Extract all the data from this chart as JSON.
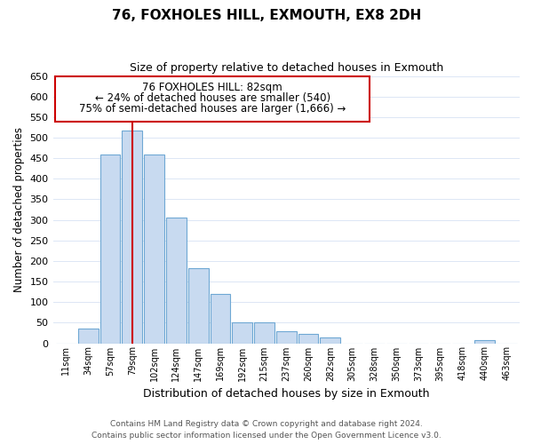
{
  "title": "76, FOXHOLES HILL, EXMOUTH, EX8 2DH",
  "subtitle": "Size of property relative to detached houses in Exmouth",
  "xlabel": "Distribution of detached houses by size in Exmouth",
  "ylabel": "Number of detached properties",
  "categories": [
    "11sqm",
    "34sqm",
    "57sqm",
    "79sqm",
    "102sqm",
    "124sqm",
    "147sqm",
    "169sqm",
    "192sqm",
    "215sqm",
    "237sqm",
    "260sqm",
    "282sqm",
    "305sqm",
    "328sqm",
    "350sqm",
    "373sqm",
    "395sqm",
    "418sqm",
    "440sqm",
    "463sqm"
  ],
  "values": [
    0,
    35,
    458,
    518,
    458,
    305,
    183,
    120,
    50,
    50,
    30,
    23,
    13,
    0,
    0,
    0,
    0,
    0,
    0,
    8,
    0
  ],
  "bar_color": "#c8daf0",
  "bar_edge_color": "#6fa8d4",
  "property_bar_index": 3,
  "property_line_color": "#cc0000",
  "ylim": [
    0,
    650
  ],
  "yticks": [
    0,
    50,
    100,
    150,
    200,
    250,
    300,
    350,
    400,
    450,
    500,
    550,
    600,
    650
  ],
  "annotation_title": "76 FOXHOLES HILL: 82sqm",
  "annotation_line1": "← 24% of detached houses are smaller (540)",
  "annotation_line2": "75% of semi-detached houses are larger (1,666) →",
  "annotation_box_color": "#ffffff",
  "annotation_box_edge": "#cc0000",
  "footer_line1": "Contains HM Land Registry data © Crown copyright and database right 2024.",
  "footer_line2": "Contains public sector information licensed under the Open Government Licence v3.0.",
  "background_color": "#ffffff",
  "grid_color": "#dce6f5"
}
